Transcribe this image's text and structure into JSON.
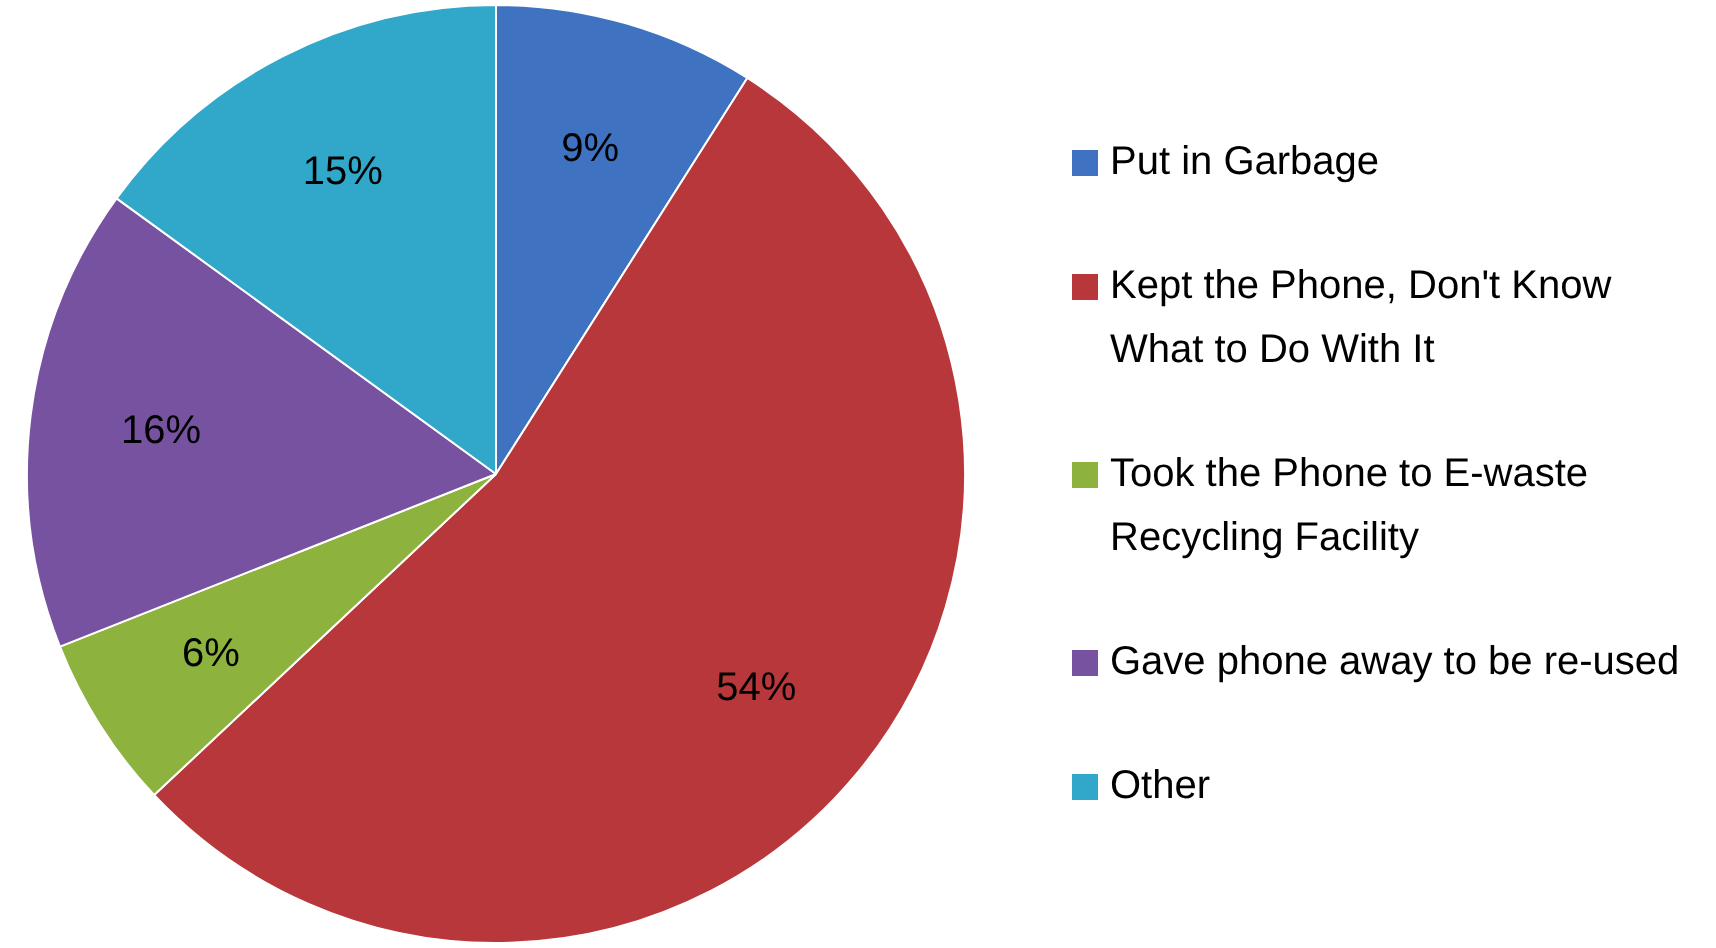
{
  "chart_data": {
    "type": "pie",
    "categories": [
      "Put in Garbage",
      "Kept the Phone, Don't Know What to Do With It",
      "Took the Phone to E-waste Recycling Facility",
      "Gave phone away to be re-used",
      "Other"
    ],
    "values": [
      9,
      54,
      6,
      16,
      15
    ],
    "value_labels": [
      "9%",
      "54%",
      "6%",
      "16%",
      "15%"
    ],
    "colors": [
      "#3f72c0",
      "#b8373a",
      "#8db33e",
      "#7752a0",
      "#31a7c9"
    ],
    "legend": "right"
  }
}
